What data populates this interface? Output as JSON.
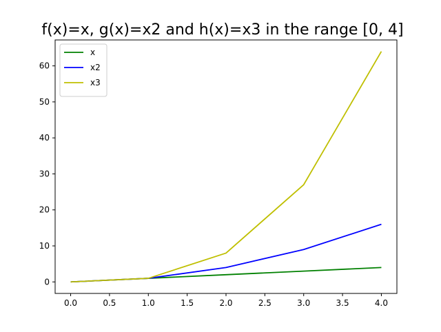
{
  "chart_data": {
    "type": "line",
    "title": "f(x)=x, g(x)=x2 and h(x)=x3 in the range [0, 4]",
    "xlabel": "",
    "ylabel": "",
    "xlim": [
      -0.2,
      4.2
    ],
    "ylim": [
      -3.2,
      67.2
    ],
    "x": [
      0,
      1,
      2,
      3,
      4
    ],
    "series": [
      {
        "name": "x",
        "values": [
          0,
          1,
          2,
          3,
          4
        ],
        "color": "#008000"
      },
      {
        "name": "x2",
        "values": [
          0,
          1,
          4,
          9,
          16
        ],
        "color": "#0000ff"
      },
      {
        "name": "x3",
        "values": [
          0,
          1,
          8,
          27,
          64
        ],
        "color": "#bfbf00"
      }
    ],
    "x_ticks": [
      {
        "value": 0,
        "label": "0.0"
      },
      {
        "value": 0.5,
        "label": "0.5"
      },
      {
        "value": 1,
        "label": "1.0"
      },
      {
        "value": 1.5,
        "label": "1.5"
      },
      {
        "value": 2,
        "label": "2.0"
      },
      {
        "value": 2.5,
        "label": "2.5"
      },
      {
        "value": 3,
        "label": "3.0"
      },
      {
        "value": 3.5,
        "label": "3.5"
      },
      {
        "value": 4,
        "label": "4.0"
      }
    ],
    "y_ticks": [
      {
        "value": 0,
        "label": "0"
      },
      {
        "value": 10,
        "label": "10"
      },
      {
        "value": 20,
        "label": "20"
      },
      {
        "value": 30,
        "label": "30"
      },
      {
        "value": 40,
        "label": "40"
      },
      {
        "value": 50,
        "label": "50"
      },
      {
        "value": 60,
        "label": "60"
      }
    ],
    "grid": false,
    "legend_position": "top-left"
  }
}
